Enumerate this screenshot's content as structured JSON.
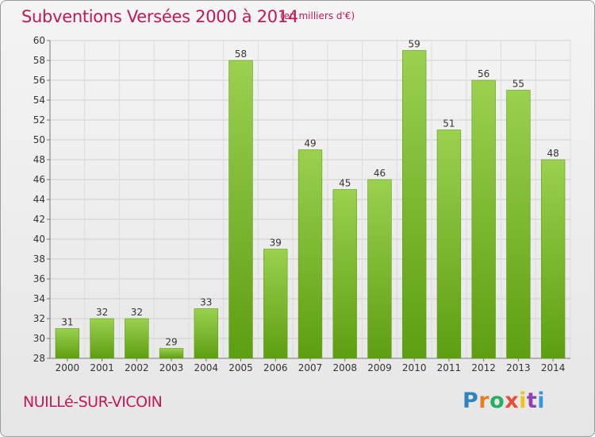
{
  "header": {
    "title": "Subventions Versées 2000 à 2014",
    "unit": "(en milliers d'€)"
  },
  "footer": {
    "commune": "NUILLé-SUR-VICOIN",
    "brand": [
      "P",
      "r",
      "o",
      "x",
      "i",
      "t",
      "i"
    ],
    "brand_colors": [
      "#2e86c1",
      "#e67e22",
      "#27ae60",
      "#e74c3c",
      "#f1c40f",
      "#8e44ad",
      "#3498db"
    ]
  },
  "chart_data": {
    "type": "bar",
    "categories": [
      "2000",
      "2001",
      "2002",
      "2003",
      "2004",
      "2005",
      "2006",
      "2007",
      "2008",
      "2009",
      "2010",
      "2011",
      "2012",
      "2013",
      "2014"
    ],
    "values": [
      31,
      32,
      32,
      29,
      33,
      58,
      39,
      49,
      45,
      46,
      59,
      51,
      56,
      55,
      48
    ],
    "title": "Subventions Versées 2000 à 2014",
    "ylabel": "",
    "xlabel": "",
    "ylim": [
      28,
      60
    ],
    "yticks": [
      28,
      30,
      32,
      34,
      36,
      38,
      40,
      42,
      44,
      46,
      48,
      50,
      52,
      54,
      56,
      58,
      60
    ],
    "grid": true,
    "bar_color": "#7cc22d"
  }
}
